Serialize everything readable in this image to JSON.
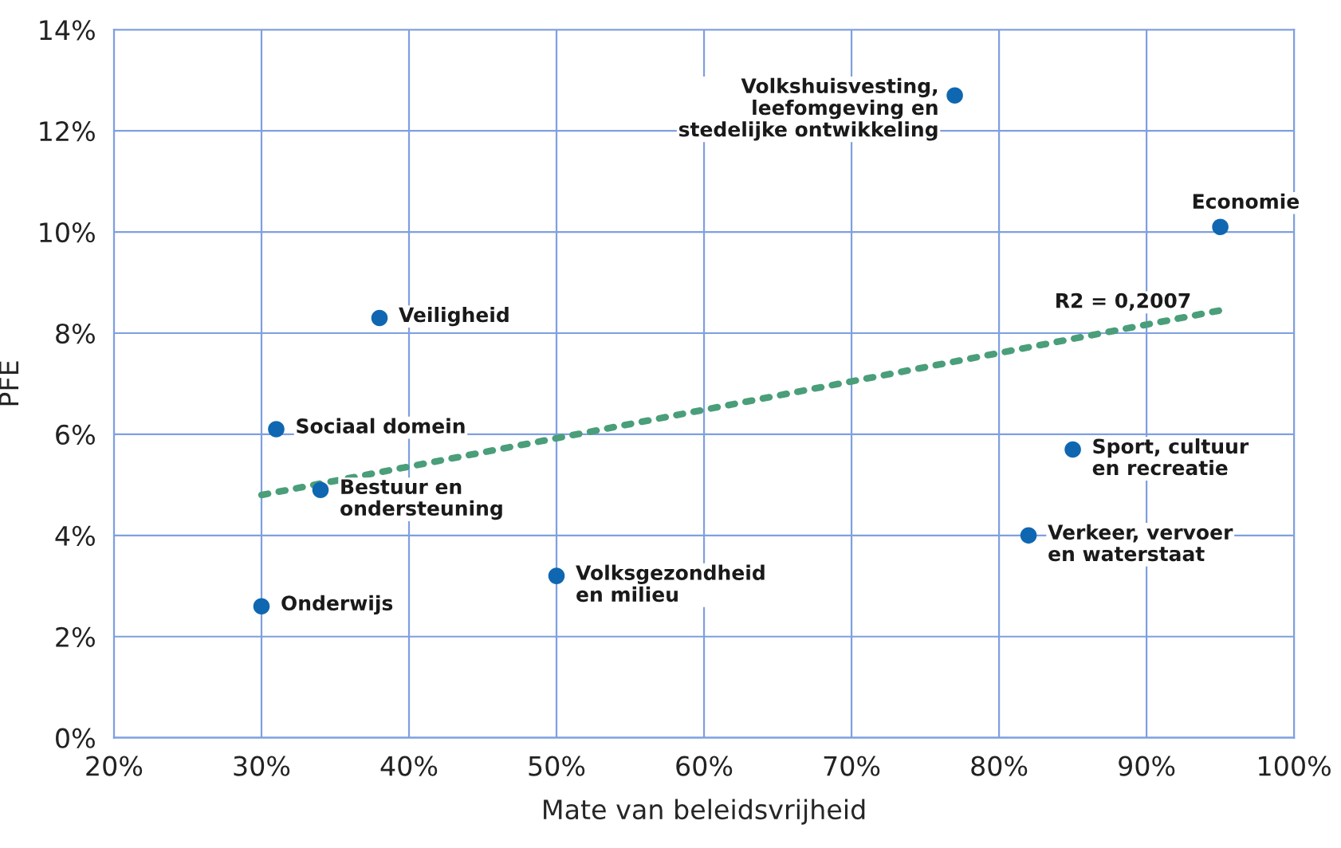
{
  "chart_data": {
    "type": "scatter",
    "xlabel": "Mate van beleidsvrijheid",
    "ylabel": "PFE",
    "xlim": [
      20,
      100
    ],
    "ylim": [
      0,
      14
    ],
    "xticks": [
      {
        "value": 20,
        "label": "20%"
      },
      {
        "value": 30,
        "label": "30%"
      },
      {
        "value": 40,
        "label": "40%"
      },
      {
        "value": 50,
        "label": "50%"
      },
      {
        "value": 60,
        "label": "60%"
      },
      {
        "value": 70,
        "label": "70%"
      },
      {
        "value": 80,
        "label": "80%"
      },
      {
        "value": 90,
        "label": "90%"
      },
      {
        "value": 100,
        "label": "100%"
      }
    ],
    "yticks": [
      {
        "value": 0,
        "label": "0%"
      },
      {
        "value": 2,
        "label": "2%"
      },
      {
        "value": 4,
        "label": "4%"
      },
      {
        "value": 6,
        "label": "6%"
      },
      {
        "value": 8,
        "label": "8%"
      },
      {
        "value": 10,
        "label": "10%"
      },
      {
        "value": 12,
        "label": "12%"
      },
      {
        "value": 14,
        "label": "14%"
      }
    ],
    "grid": true,
    "marker": "circle",
    "series": [
      {
        "color": "#0f67b1",
        "x": [
          77,
          95,
          38,
          31,
          34,
          30,
          50,
          85,
          82
        ],
        "values": [
          12.7,
          10.1,
          8.3,
          6.1,
          4.9,
          2.6,
          3.2,
          5.7,
          4.0
        ]
      },
      {
        "type": "line",
        "color": "#4a9e7a",
        "line_style": "dotted",
        "marker": "none",
        "x": [
          30,
          95
        ],
        "values": [
          4.8,
          8.45
        ]
      }
    ],
    "annotations": [
      {
        "text": "Volkshuisvesting,\nleefomgeving en\nstedelijke ontwikkeling",
        "x": 77,
        "y": 12.7
      },
      {
        "text": "Economie",
        "x": 95,
        "y": 10.1
      },
      "R2 = 0,2007",
      {
        "text": "Veiligheid",
        "x": 38,
        "y": 8.3
      },
      {
        "text": "Sociaal domein",
        "x": 31,
        "y": 6.1
      },
      {
        "text": "Bestuur en\nondersteuning",
        "x": 34,
        "y": 4.9
      },
      {
        "text": "Onderwijs",
        "x": 30,
        "y": 2.6
      },
      {
        "text": "Volksgezondheid\nen milieu",
        "x": 50,
        "y": 3.2
      },
      {
        "text": "Sport, cultuur\nen recreatie",
        "x": 85,
        "y": 5.7
      },
      {
        "text": "Verkeer, vervoer\nen waterstaat",
        "x": 82,
        "y": 4.0
      }
    ]
  }
}
